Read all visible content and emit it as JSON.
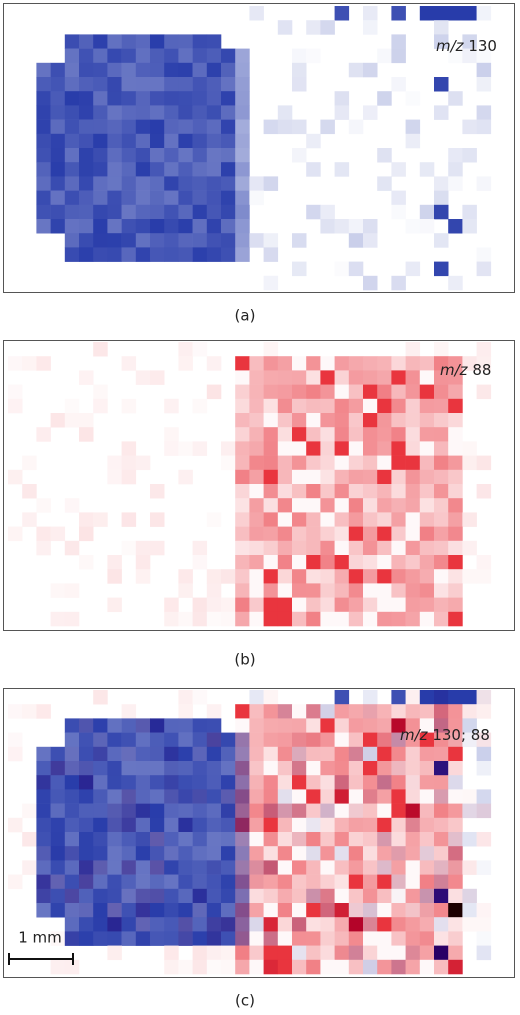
{
  "panels": [
    {
      "label": "(a)",
      "annotation": {
        "italic": "m/z",
        "text": "130"
      }
    },
    {
      "label": "(b)",
      "annotation": {
        "italic": "m/z",
        "text": "88"
      }
    },
    {
      "label": "(c)",
      "annotation": {
        "italic": "m/z",
        "text": "130; 88"
      },
      "scale_bar": "1 mm"
    }
  ]
}
